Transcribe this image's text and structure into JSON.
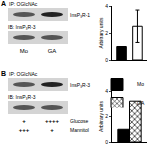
{
  "chart_data": [
    {
      "type": "bar",
      "y_label": "Arbitrary units",
      "categories": [
        "Mo",
        "GA"
      ],
      "values": [
        1,
        2.5
      ],
      "errors": [
        0,
        1.2
      ],
      "colors": [
        "#000000",
        "#ffffff"
      ],
      "ylim": [
        0,
        4
      ],
      "yticks": [
        0,
        2,
        4
      ],
      "tick_labels": "y"
    },
    {
      "type": "bar",
      "y_label": "Arbitrary units",
      "categories": [
        null
      ],
      "series": [
        {
          "name": "Mo",
          "color": "#000000",
          "values": [
            1
          ]
        },
        {
          "name": "GA",
          "color": "#ffffff",
          "values": [
            3.2
          ]
        }
      ],
      "ylim": [
        0,
        4
      ],
      "yticks": [
        0,
        2,
        4
      ],
      "tick_labels": "y",
      "legend": "top"
    }
  ],
  "blots": [
    {
      "panel": "A",
      "ip": "IP: OGlcNAc",
      "rows": [
        {
          "probe": null,
          "band": "InsP₃R-1"
        },
        {
          "probe": "IB: InsP₃R-3",
          "band": null
        }
      ],
      "lanes": [
        "Mo",
        "GA"
      ]
    },
    {
      "panel": "B",
      "ip": "IP: OGlcNAc",
      "rows": [
        {
          "probe": null,
          "band": "InsP₃R-3"
        },
        {
          "probe": "IB: InsP₃R-3",
          "band": null
        }
      ],
      "conditions": [
        {
          "name": "Glucose",
          "lanes": [
            "+",
            "++++"
          ]
        },
        {
          "name": "Mannitol",
          "lanes": [
            "+++",
            "+"
          ]
        }
      ]
    }
  ]
}
